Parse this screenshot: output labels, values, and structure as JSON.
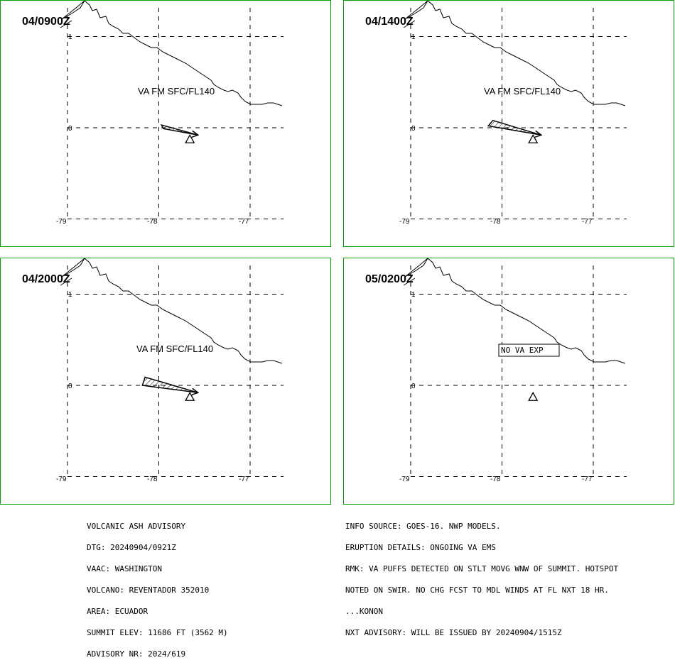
{
  "panels": [
    {
      "time": "04/0900Z",
      "ash": true,
      "label": "VA FM SFC/FL140",
      "poly": [
        [
          -77.95,
          -0.01
        ],
        [
          -77.57,
          -0.08
        ],
        [
          -77.97,
          0.03
        ]
      ]
    },
    {
      "time": "04/1400Z",
      "ash": true,
      "label": "VA FM SFC/FL140",
      "poly": [
        [
          -78.15,
          0.02
        ],
        [
          -77.57,
          -0.08
        ],
        [
          -78.1,
          0.08
        ]
      ]
    },
    {
      "time": "04/2000Z",
      "ash": true,
      "label": "VA FM SFC/FL140",
      "poly": [
        [
          -78.18,
          0.0
        ],
        [
          -77.57,
          -0.08
        ],
        [
          -78.15,
          0.09
        ]
      ]
    },
    {
      "time": "05/0200Z",
      "ash": false,
      "label": "NO VA EXP",
      "poly": []
    }
  ],
  "lat_labels": [
    "1",
    "0"
  ],
  "lon_labels": [
    "-79",
    "-78",
    "-77"
  ],
  "volcano": {
    "lon": -77.66,
    "lat": -0.08
  },
  "advisory_left": [
    "VOLCANIC ASH ADVISORY",
    "DTG: 20240904/0921Z",
    "VAAC: WASHINGTON",
    "VOLCANO: REVENTADOR 352010",
    "AREA: ECUADOR",
    "SUMMIT ELEV: 11686 FT (3562 M)",
    "ADVISORY NR: 2024/619"
  ],
  "advisory_right": [
    "INFO SOURCE: GOES-16. NWP MODELS.",
    "ERUPTION DETAILS: ONGOING VA EMS",
    "RMK: VA PUFFS DETECTED ON STLT MOVG WNW OF SUMMIT. HOTSPOT",
    "NOTED ON SWIR. NO CHG FCST TO MDL WINDS AT FL NXT 18 HR.",
    "...KONON",
    "NXT ADVISORY: WILL BE ISSUED BY 20240904/1515Z"
  ],
  "colors": {
    "frame": "#00a000",
    "ink": "#000000"
  }
}
